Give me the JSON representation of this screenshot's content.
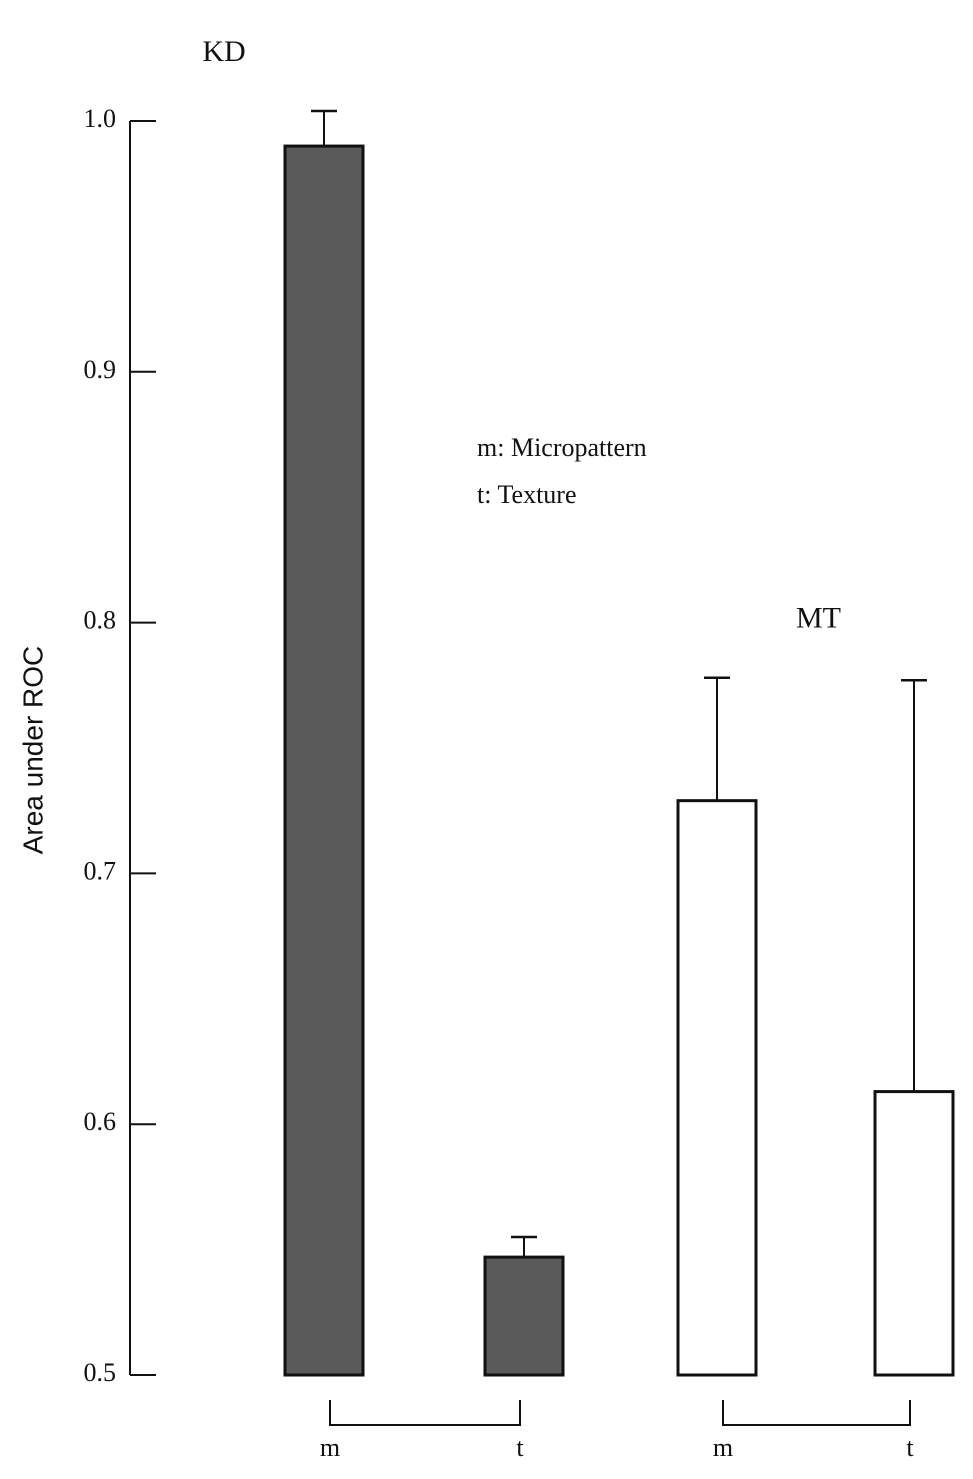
{
  "chart_data": {
    "type": "bar",
    "y_label": "Area under ROC",
    "annotations": [
      "m: Micropattern",
      "t: Texture"
    ],
    "ylim": [
      0.5,
      1.0
    ],
    "yticks": [
      0.5,
      0.6,
      0.7,
      0.8,
      0.9,
      {
        "value": 1.0,
        "label": "1.0"
      }
    ],
    "groups": [
      {
        "label": "KD",
        "color": "#5a5a5a",
        "categories": [
          "m",
          "t"
        ],
        "values": [
          0.99,
          0.547
        ],
        "errors": [
          0.014,
          0.008
        ]
      },
      {
        "label": "MT",
        "color": "#ffffff",
        "categories": [
          "m",
          "t"
        ],
        "values": [
          0.729,
          0.613
        ],
        "errors": [
          0.049,
          0.164
        ]
      }
    ]
  }
}
